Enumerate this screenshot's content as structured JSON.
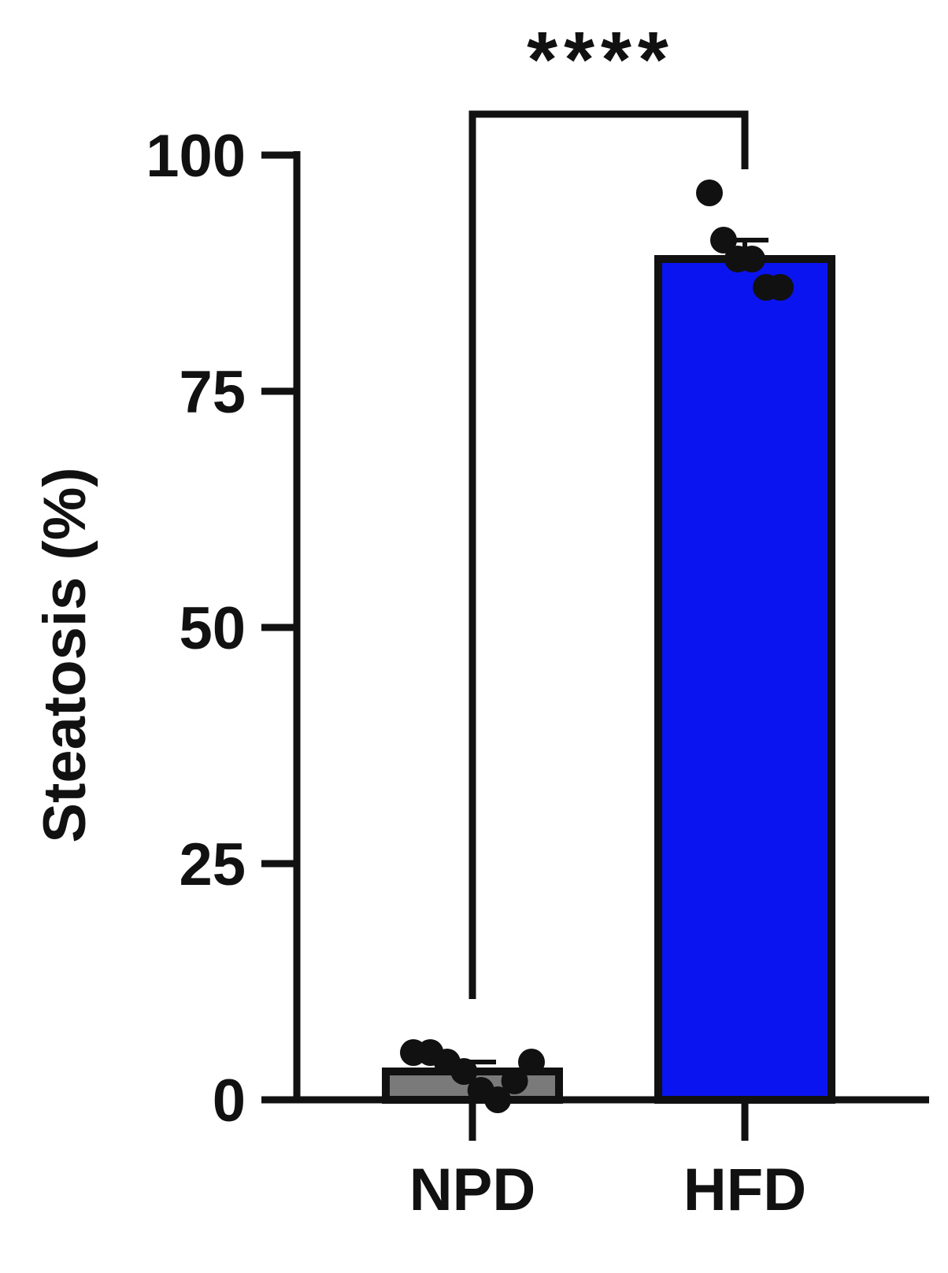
{
  "chart_data": {
    "type": "bar",
    "title": "",
    "xlabel": "",
    "ylabel": "Steatosis (%)",
    "ylim": [
      0,
      100
    ],
    "yticks": [
      "0",
      "25",
      "50",
      "75",
      "100"
    ],
    "categories": [
      "NPD",
      "HFD"
    ],
    "values": [
      3,
      89
    ],
    "error_upper": [
      4,
      91
    ],
    "colors": {
      "NPD": "#7a7a7a",
      "HFD": "#0a14f0",
      "outline": "#111111"
    },
    "points": {
      "NPD": [
        5,
        5,
        4,
        3,
        1,
        0,
        2,
        4
      ],
      "HFD": [
        96,
        91,
        89,
        89,
        86,
        86
      ]
    },
    "significance": {
      "label": "****",
      "between": [
        "NPD",
        "HFD"
      ]
    },
    "grid": false,
    "legend": "none"
  }
}
